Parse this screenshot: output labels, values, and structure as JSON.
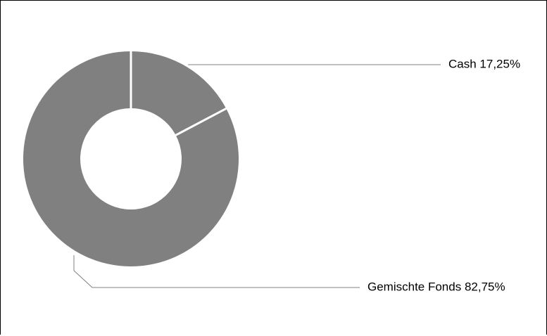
{
  "chart_data": {
    "type": "pie",
    "variant": "donut",
    "slices": [
      {
        "label": "Cash",
        "value": 17.25,
        "display": "Cash 17,25%"
      },
      {
        "label": "Gemischte Fonds",
        "value": 82.75,
        "display": "Gemischte Fonds 82,75%"
      }
    ],
    "colors": {
      "slice": "#808080",
      "separator": "#ffffff",
      "leader": "#808080",
      "frame": "#000000"
    },
    "legend": "none"
  }
}
